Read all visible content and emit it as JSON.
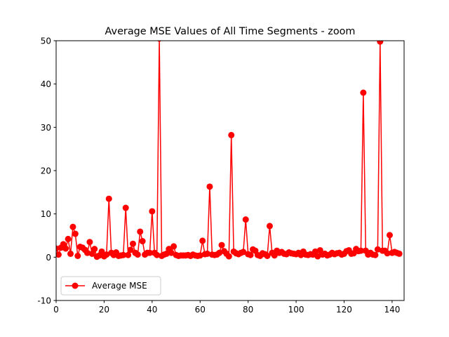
{
  "chart_data": {
    "type": "line",
    "title": "Average MSE Values of All Time Segments - zoom",
    "xlabel": "",
    "ylabel": "",
    "xlim": [
      0,
      145
    ],
    "ylim": [
      -10,
      50
    ],
    "xticks": [
      0,
      20,
      40,
      60,
      80,
      100,
      120,
      140
    ],
    "yticks": [
      -10,
      0,
      10,
      20,
      30,
      40,
      50
    ],
    "grid": false,
    "legend_position": "lower-left",
    "series": [
      {
        "name": "Average MSE",
        "color": "#ff0000",
        "marker": "circle",
        "x": [
          0,
          1,
          2,
          3,
          4,
          5,
          6,
          7,
          8,
          9,
          10,
          11,
          12,
          13,
          14,
          15,
          16,
          17,
          18,
          19,
          20,
          21,
          22,
          23,
          24,
          25,
          26,
          27,
          28,
          29,
          30,
          31,
          32,
          33,
          34,
          35,
          36,
          37,
          38,
          39,
          40,
          41,
          42,
          43,
          44,
          45,
          46,
          47,
          48,
          49,
          50,
          51,
          52,
          53,
          54,
          55,
          56,
          57,
          58,
          59,
          60,
          61,
          62,
          63,
          64,
          65,
          66,
          67,
          68,
          69,
          70,
          71,
          72,
          73,
          74,
          75,
          76,
          77,
          78,
          79,
          80,
          81,
          82,
          83,
          84,
          85,
          86,
          87,
          88,
          89,
          90,
          91,
          92,
          93,
          94,
          95,
          96,
          97,
          98,
          99,
          100,
          101,
          102,
          103,
          104,
          105,
          106,
          107,
          108,
          109,
          110,
          111,
          112,
          113,
          114,
          115,
          116,
          117,
          118,
          119,
          120,
          121,
          122,
          123,
          124,
          125,
          126,
          127,
          128,
          129,
          130,
          131,
          132,
          133,
          134,
          135,
          136,
          137,
          138,
          139,
          140,
          141,
          142,
          143
        ],
        "values": [
          2.0,
          0.6,
          2.2,
          3.0,
          2.0,
          4.2,
          0.8,
          7.0,
          5.4,
          0.3,
          2.4,
          2.2,
          1.7,
          1.0,
          3.5,
          0.8,
          1.9,
          0.1,
          0.4,
          1.3,
          0.2,
          0.6,
          13.5,
          1.0,
          0.5,
          1.1,
          0.3,
          0.4,
          0.5,
          11.4,
          0.5,
          1.7,
          3.1,
          1.0,
          0.6,
          5.9,
          3.7,
          0.6,
          1.0,
          1.0,
          10.6,
          1.0,
          0.5,
          50.5,
          0.3,
          0.6,
          0.8,
          1.9,
          1.0,
          2.5,
          0.5,
          0.3,
          0.4,
          0.4,
          0.4,
          0.5,
          0.3,
          0.6,
          0.4,
          0.3,
          0.4,
          3.8,
          0.7,
          0.8,
          16.3,
          0.6,
          0.5,
          0.6,
          1.0,
          2.8,
          1.4,
          0.8,
          0.2,
          28.2,
          1.3,
          0.9,
          0.7,
          1.0,
          1.2,
          8.7,
          0.7,
          0.5,
          1.8,
          1.5,
          0.5,
          0.3,
          0.9,
          0.7,
          0.3,
          7.2,
          1.0,
          0.4,
          1.5,
          1.0,
          1.2,
          0.8,
          0.7,
          1.1,
          0.9,
          0.8,
          0.7,
          1.0,
          0.5,
          1.3,
          0.6,
          0.5,
          0.7,
          0.6,
          1.3,
          0.2,
          1.6,
          0.6,
          0.8,
          0.4,
          0.6,
          1.0,
          0.7,
          0.9,
          1.0,
          0.6,
          0.8,
          1.4,
          1.6,
          0.8,
          0.9,
          1.9,
          1.4,
          1.5,
          38.0,
          1.5,
          0.6,
          1.0,
          0.6,
          0.5,
          1.8,
          49.8,
          1.5,
          1.5,
          0.9,
          5.1,
          1.0,
          1.2,
          1.0,
          0.8
        ]
      }
    ]
  }
}
